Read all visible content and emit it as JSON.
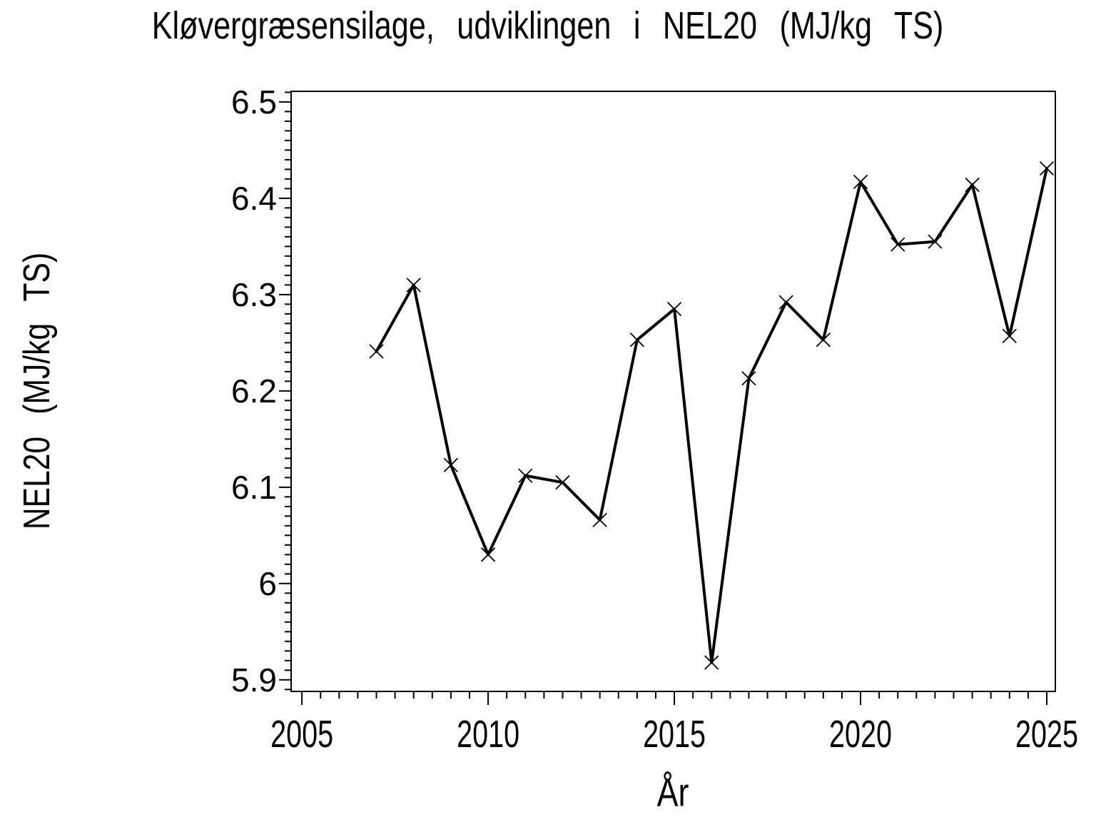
{
  "page": {
    "background_color": "#ffffff",
    "foreground_color": "#000000"
  },
  "chart_data": {
    "type": "line",
    "title": "Kløvergræsensilage, udviklingen i NEL20 (MJ/kg TS)",
    "xlabel": "År",
    "ylabel": "NEL20 (MJ/kg TS)",
    "grid": false,
    "legend": "none",
    "line_color": "#000000",
    "marker": "x",
    "series": [
      {
        "name": "NEL20 (MJ/kg TS)",
        "x": [
          2007,
          2008,
          2009,
          2010,
          2011,
          2012,
          2013,
          2014,
          2015,
          2016,
          2017,
          2018,
          2019,
          2020,
          2021,
          2022,
          2023,
          2024,
          2025
        ],
        "y": [
          6.241,
          6.31,
          6.123,
          6.03,
          6.112,
          6.105,
          6.066,
          6.253,
          6.285,
          5.918,
          6.213,
          6.292,
          6.253,
          6.417,
          6.352,
          6.355,
          6.414,
          6.257,
          6.431
        ]
      }
    ],
    "x_axis": {
      "min": 2004.71,
      "max": 2025.23,
      "major_ticks": [
        2005,
        2010,
        2015,
        2020,
        2025
      ],
      "tick_labels": [
        "2005",
        "2010",
        "2015",
        "2020",
        "2025"
      ],
      "minor_step": 0.5
    },
    "y_axis": {
      "min": 5.888,
      "max": 6.511,
      "major_ticks": [
        6.5,
        6.4,
        6.3,
        6.2,
        6.1,
        6.0,
        5.9
      ],
      "tick_labels": [
        "6.5",
        "6.4",
        "6.3",
        "6.2",
        "6.1",
        "6",
        "5.9"
      ],
      "minor_step": 0.01
    }
  }
}
